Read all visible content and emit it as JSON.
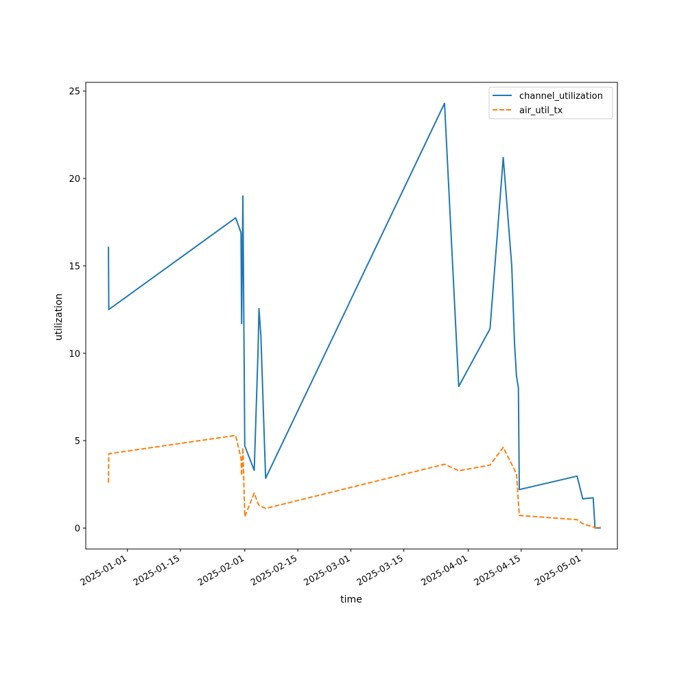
{
  "chart_data": {
    "type": "line",
    "title": "",
    "xlabel": "time",
    "ylabel": "utilization",
    "x_axis_type": "date",
    "xlim": [
      "2024-12-21",
      "2025-05-10"
    ],
    "ylim": [
      -1.2,
      25.5
    ],
    "x_ticks": [
      "2025-01-01",
      "2025-01-15",
      "2025-02-01",
      "2025-02-15",
      "2025-03-01",
      "2025-03-15",
      "2025-04-01",
      "2025-04-15",
      "2025-05-01"
    ],
    "y_ticks": [
      0,
      5,
      10,
      15,
      20,
      25
    ],
    "grid": false,
    "legend_position": "upper right",
    "series": [
      {
        "name": "channel_utilization",
        "color": "#1f77b4",
        "dash": "solid",
        "points": [
          [
            "2024-12-27 00:00",
            16.1
          ],
          [
            "2024-12-27 02:00",
            12.5
          ],
          [
            "2025-01-29 14:00",
            17.75
          ],
          [
            "2025-01-31 00:00",
            16.9
          ],
          [
            "2025-01-31 04:00",
            11.7
          ],
          [
            "2025-01-31 12:00",
            19.0
          ],
          [
            "2025-02-01 00:00",
            4.7
          ],
          [
            "2025-02-03 12:00",
            3.3
          ],
          [
            "2025-02-04 12:00",
            10.2
          ],
          [
            "2025-02-04 18:00",
            12.55
          ],
          [
            "2025-02-05 06:00",
            11.0
          ],
          [
            "2025-02-06 12:00",
            2.85
          ],
          [
            "2025-03-25 18:00",
            24.3
          ],
          [
            "2025-03-29 12:00",
            8.1
          ],
          [
            "2025-04-06 18:00",
            11.4
          ],
          [
            "2025-04-10 06:00",
            21.2
          ],
          [
            "2025-04-12 12:00",
            15.0
          ],
          [
            "2025-04-13 06:00",
            10.5
          ],
          [
            "2025-04-13 18:00",
            8.7
          ],
          [
            "2025-04-14 06:00",
            8.0
          ],
          [
            "2025-04-14 12:00",
            2.2
          ],
          [
            "2025-04-29 18:00",
            2.97
          ],
          [
            "2025-05-01 06:00",
            1.67
          ],
          [
            "2025-05-04 00:00",
            1.73
          ],
          [
            "2025-05-04 12:00",
            0.0
          ],
          [
            "2025-05-06 00:00",
            0.0
          ]
        ]
      },
      {
        "name": "air_util_tx",
        "color": "#ff7f0e",
        "dash": "dashed",
        "points": [
          [
            "2024-12-27 00:00",
            2.6
          ],
          [
            "2024-12-27 02:00",
            4.25
          ],
          [
            "2025-01-29 14:00",
            5.3
          ],
          [
            "2025-01-31 00:00",
            4.0
          ],
          [
            "2025-01-31 04:00",
            3.0
          ],
          [
            "2025-01-31 12:00",
            4.6
          ],
          [
            "2025-02-01 00:00",
            0.65
          ],
          [
            "2025-02-03 12:00",
            2.0
          ],
          [
            "2025-02-04 12:00",
            1.4
          ],
          [
            "2025-02-04 18:00",
            1.3
          ],
          [
            "2025-02-06 12:00",
            1.12
          ],
          [
            "2025-03-25 18:00",
            3.65
          ],
          [
            "2025-03-29 12:00",
            3.28
          ],
          [
            "2025-04-06 18:00",
            3.6
          ],
          [
            "2025-04-10 06:00",
            4.62
          ],
          [
            "2025-04-13 18:00",
            3.1
          ],
          [
            "2025-04-14 12:00",
            0.72
          ],
          [
            "2025-04-29 18:00",
            0.48
          ],
          [
            "2025-05-01 06:00",
            0.25
          ],
          [
            "2025-05-04 12:00",
            0.02
          ],
          [
            "2025-05-06 00:00",
            0.05
          ]
        ]
      }
    ]
  }
}
